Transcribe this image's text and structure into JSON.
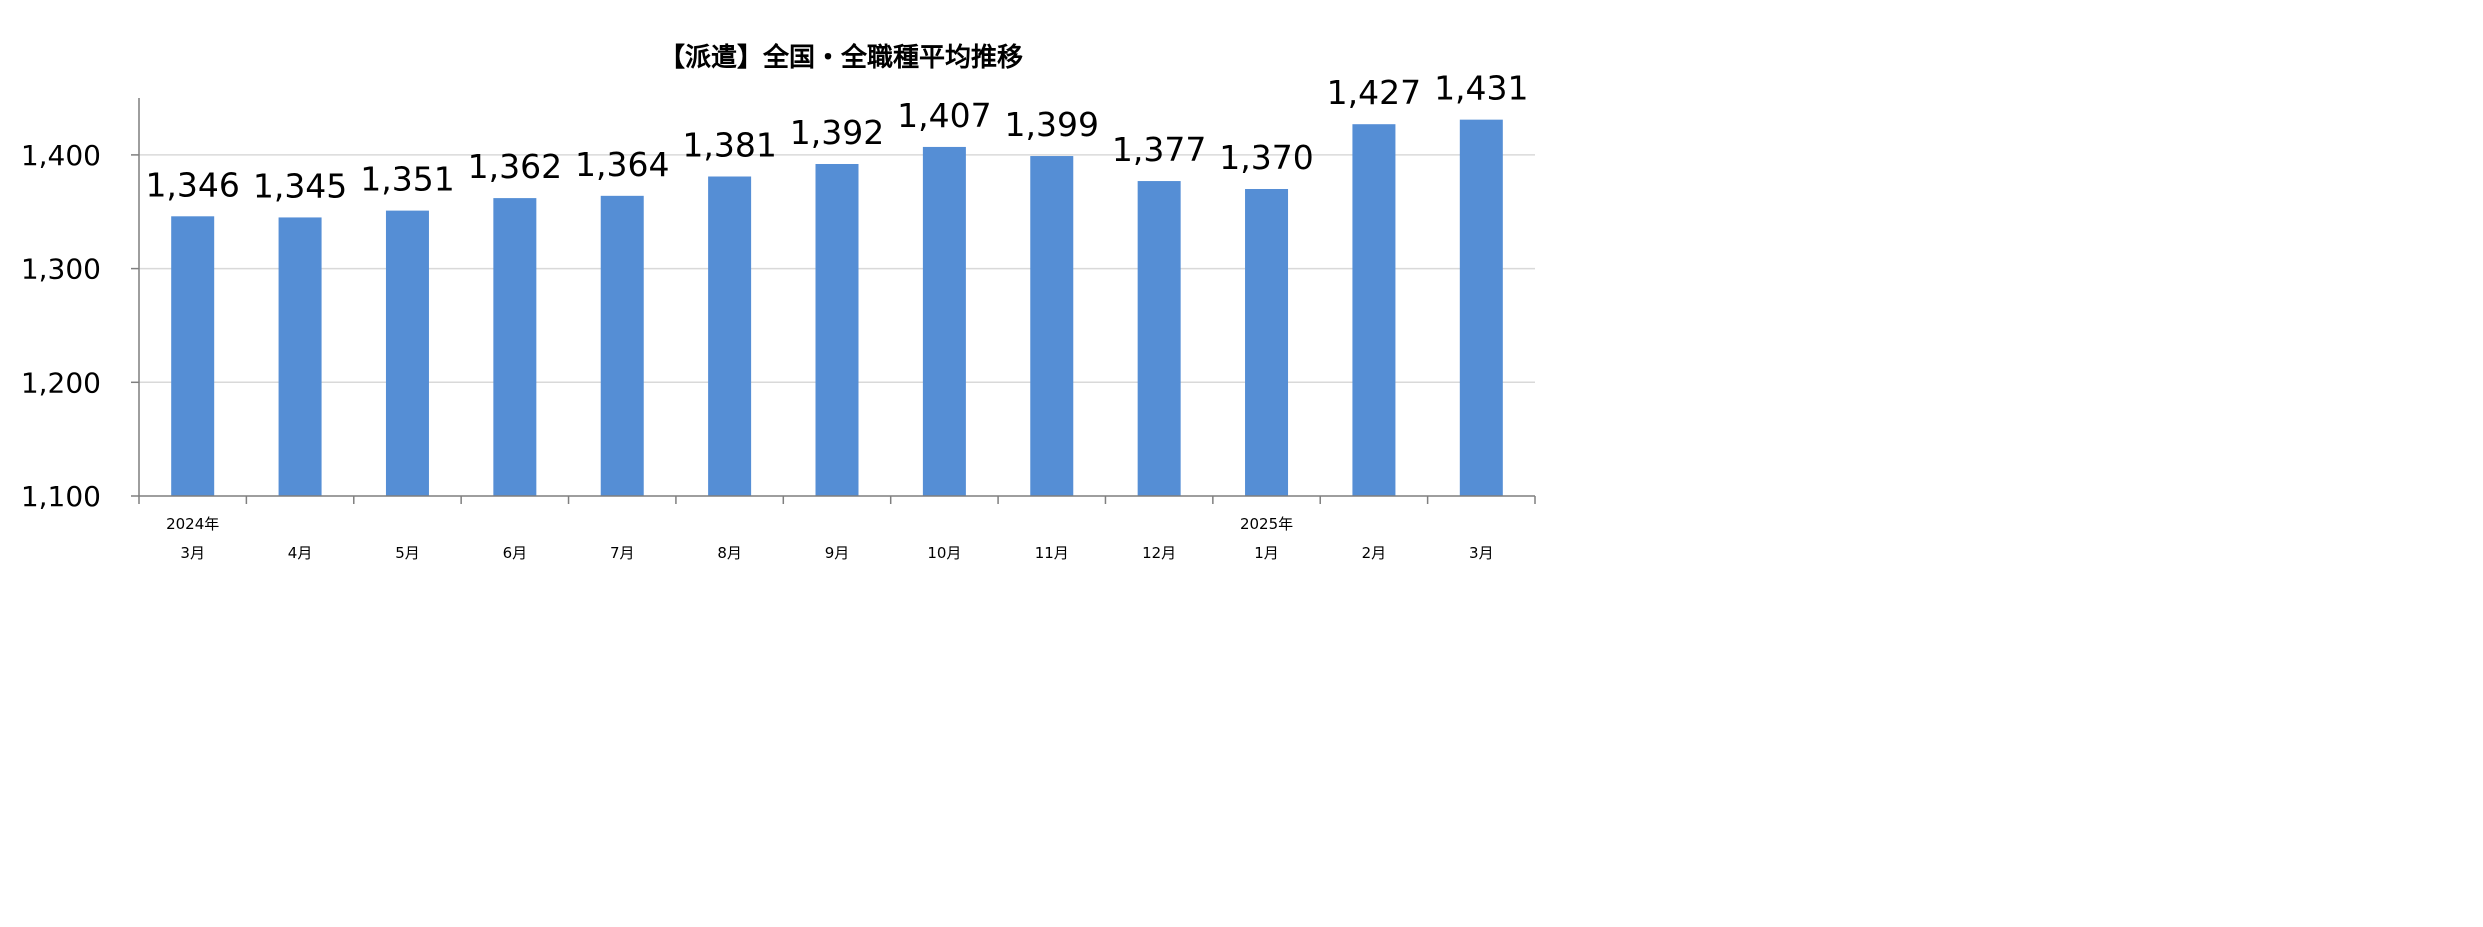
{
  "chart_data": {
    "type": "bar",
    "title": "【派遣】全国・全職種平均推移",
    "xlabel": "",
    "ylabel": "",
    "ylim": [
      1100,
      1450
    ],
    "y_ticks": [
      "1,100",
      "1,200",
      "1,300",
      "1,400"
    ],
    "y_tick_values": [
      1100,
      1200,
      1300,
      1400
    ],
    "grid": true,
    "legend": "none",
    "categories": [
      "3月",
      "4月",
      "5月",
      "6月",
      "7月",
      "8月",
      "9月",
      "10月",
      "11月",
      "12月",
      "1月",
      "2月",
      "3月"
    ],
    "year_labels": [
      "2024年",
      "",
      "",
      "",
      "",
      "",
      "",
      "",
      "",
      "",
      "2025年",
      "",
      ""
    ],
    "values": [
      1346,
      1345,
      1351,
      1362,
      1364,
      1381,
      1392,
      1407,
      1399,
      1377,
      1370,
      1427,
      1431
    ],
    "value_labels": [
      "1,346",
      "1,345",
      "1,351",
      "1,362",
      "1,364",
      "1,381",
      "1,392",
      "1,407",
      "1,399",
      "1,377",
      "1,370",
      "1,427",
      "1,431"
    ],
    "colors": {
      "bar": "#558ED5",
      "grid": "#D9D9D9",
      "axis": "#7F7F7F"
    }
  }
}
